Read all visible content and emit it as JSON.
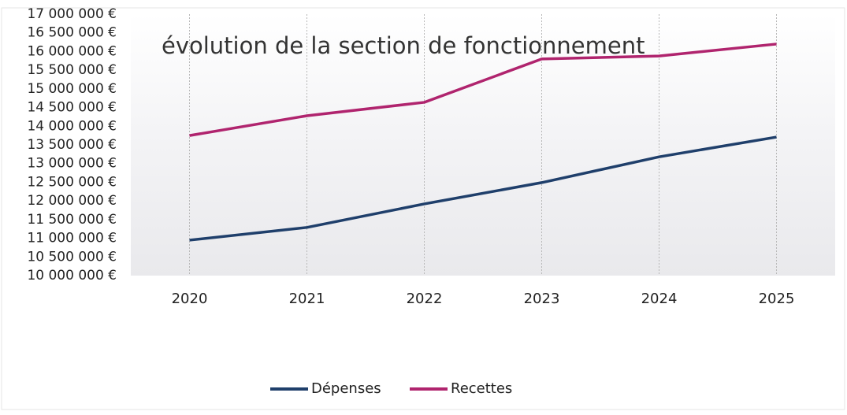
{
  "chart_data": {
    "type": "line",
    "title": "évolution de la section de fonctionnement",
    "categories": [
      "2020",
      "2021",
      "2022",
      "2023",
      "2024",
      "2025"
    ],
    "series": [
      {
        "name": "Dépenses",
        "color": "#1f3f6b",
        "values": [
          10950000,
          11290000,
          11920000,
          12490000,
          13180000,
          13710000
        ]
      },
      {
        "name": "Recettes",
        "color": "#b0246e",
        "values": [
          13750000,
          14280000,
          14640000,
          15800000,
          15880000,
          16200000
        ]
      }
    ],
    "ylim": [
      10000000,
      17000000
    ],
    "yticks": [
      {
        "value": 10000000,
        "label": "10 000 000 €"
      },
      {
        "value": 10500000,
        "label": "10 500 000 €"
      },
      {
        "value": 11000000,
        "label": "11 000 000 €"
      },
      {
        "value": 11500000,
        "label": "11 500 000 €"
      },
      {
        "value": 12000000,
        "label": "12 000 000 €"
      },
      {
        "value": 12500000,
        "label": "12 500 000 €"
      },
      {
        "value": 13000000,
        "label": "13 000 000 €"
      },
      {
        "value": 13500000,
        "label": "13 500 000 €"
      },
      {
        "value": 14000000,
        "label": "14 000 000 €"
      },
      {
        "value": 14500000,
        "label": "14 500 000 €"
      },
      {
        "value": 15000000,
        "label": "15 000 000 €"
      },
      {
        "value": 15500000,
        "label": "15 500 000 €"
      },
      {
        "value": 16000000,
        "label": "16 000 000 €"
      },
      {
        "value": 16500000,
        "label": "16 500 000 €"
      },
      {
        "value": 17000000,
        "label": "17 000 000 €"
      }
    ],
    "grid": "x",
    "legend": "bottom"
  }
}
